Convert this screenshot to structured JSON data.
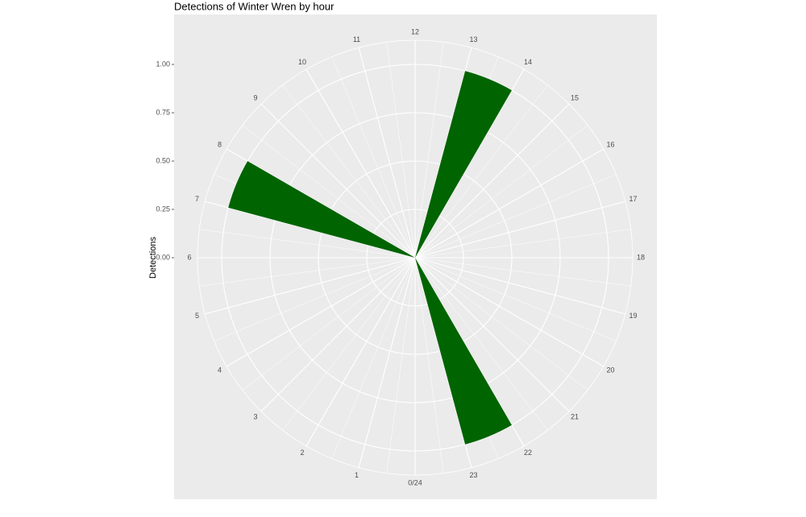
{
  "chart_data": {
    "type": "polar-bar",
    "title": "Detections of Winter Wren by hour",
    "y_label": "Detections",
    "x": [
      7,
      13,
      22
    ],
    "values": [
      1,
      1,
      1
    ],
    "color": "#006400",
    "xlim": [
      0,
      24
    ],
    "xticks": [
      {
        "value": 0,
        "label": "0/24"
      },
      1,
      2,
      3,
      4,
      5,
      6,
      7,
      8,
      9,
      10,
      11,
      12,
      13,
      14,
      15,
      16,
      17,
      18,
      19,
      20,
      21,
      22,
      23
    ],
    "ylim": [
      0,
      1
    ],
    "yticks": [
      {
        "value": 0,
        "label": "0.00"
      },
      {
        "value": 0.25,
        "label": "0.25"
      },
      {
        "value": 0.5,
        "label": "0.50"
      },
      {
        "value": 0.75,
        "label": "0.75"
      },
      {
        "value": 1,
        "label": "1.00"
      }
    ],
    "grid": true
  }
}
